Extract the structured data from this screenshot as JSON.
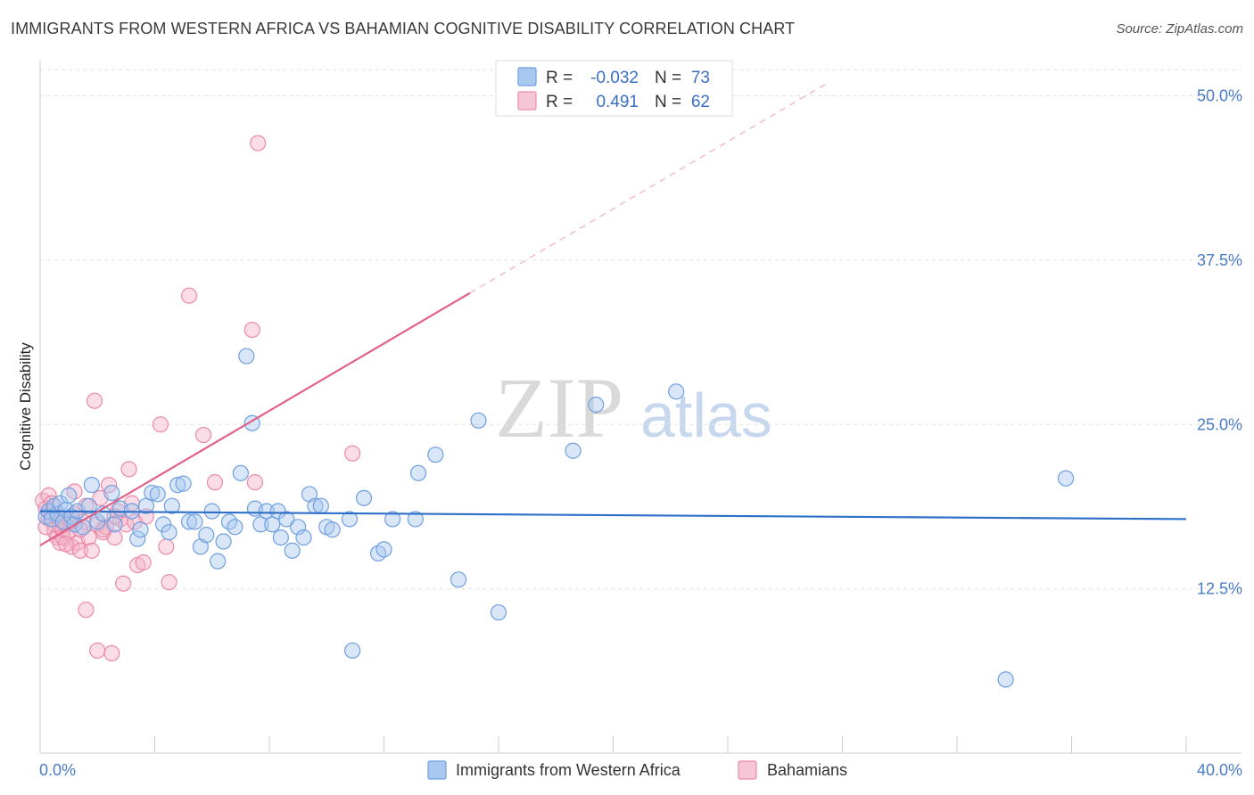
{
  "title": "IMMIGRANTS FROM WESTERN AFRICA VS BAHAMIAN COGNITIVE DISABILITY CORRELATION CHART",
  "source": "Source: ZipAtlas.com",
  "watermark": {
    "part1": "ZIP",
    "part2": "atlas"
  },
  "colors": {
    "blue_fill": "#a8c8f0",
    "blue_stroke": "#6f9fe0",
    "blue_line": "#2e6fc7",
    "pink_fill": "#f5b3c8",
    "pink_stroke": "#ec8aa9",
    "pink_line": "#e0608a",
    "grid": "#e2e2e2",
    "tick_label": "#4a7cc7"
  },
  "legend": {
    "r_label": "R =",
    "n_label": "N =",
    "series": [
      {
        "r": "-0.032",
        "n": "73"
      },
      {
        "r": "0.491",
        "n": "62"
      }
    ]
  },
  "chart_data": {
    "type": "scatter",
    "title": "IMMIGRANTS FROM WESTERN AFRICA VS BAHAMIAN COGNITIVE DISABILITY CORRELATION CHART",
    "xlabel": "",
    "ylabel": "Cognitive Disability",
    "xlim": [
      0,
      40
    ],
    "ylim": [
      0,
      52
    ],
    "x_tick_labels": [
      "0.0%",
      "40.0%"
    ],
    "y_ticks": [
      12.5,
      25.0,
      37.5,
      50.0
    ],
    "y_tick_labels": [
      "12.5%",
      "25.0%",
      "37.5%",
      "50.0%"
    ],
    "grid": true,
    "legend_position": "top-center",
    "series": [
      {
        "name": "Immigrants from Western Africa",
        "color": "blue",
        "trend": {
          "x0": 0,
          "y0": 18.4,
          "x1": 40,
          "y1": 17.8
        },
        "points": [
          [
            0.2,
            18.0
          ],
          [
            0.3,
            18.4
          ],
          [
            0.4,
            17.8
          ],
          [
            0.5,
            18.8
          ],
          [
            0.6,
            18.2
          ],
          [
            0.7,
            19.0
          ],
          [
            0.8,
            17.6
          ],
          [
            0.9,
            18.5
          ],
          [
            1.0,
            19.6
          ],
          [
            1.1,
            18.0
          ],
          [
            1.2,
            17.4
          ],
          [
            1.3,
            18.4
          ],
          [
            1.5,
            17.2
          ],
          [
            1.7,
            18.8
          ],
          [
            1.8,
            20.4
          ],
          [
            2.0,
            17.6
          ],
          [
            2.2,
            18.2
          ],
          [
            2.5,
            19.8
          ],
          [
            2.6,
            17.4
          ],
          [
            2.8,
            18.6
          ],
          [
            3.2,
            18.4
          ],
          [
            3.4,
            16.3
          ],
          [
            3.5,
            17.0
          ],
          [
            3.7,
            18.8
          ],
          [
            3.9,
            19.8
          ],
          [
            4.1,
            19.7
          ],
          [
            4.3,
            17.4
          ],
          [
            4.5,
            16.8
          ],
          [
            4.6,
            18.8
          ],
          [
            4.8,
            20.4
          ],
          [
            5.0,
            20.5
          ],
          [
            5.2,
            17.6
          ],
          [
            5.4,
            17.6
          ],
          [
            5.6,
            15.7
          ],
          [
            5.8,
            16.6
          ],
          [
            6.0,
            18.4
          ],
          [
            6.2,
            14.6
          ],
          [
            6.4,
            16.1
          ],
          [
            6.6,
            17.6
          ],
          [
            6.8,
            17.2
          ],
          [
            7.0,
            21.3
          ],
          [
            7.2,
            30.2
          ],
          [
            7.4,
            25.1
          ],
          [
            7.5,
            18.6
          ],
          [
            7.7,
            17.4
          ],
          [
            7.9,
            18.4
          ],
          [
            8.1,
            17.4
          ],
          [
            8.3,
            18.4
          ],
          [
            8.4,
            16.4
          ],
          [
            8.6,
            17.8
          ],
          [
            8.8,
            15.4
          ],
          [
            9.0,
            17.2
          ],
          [
            9.2,
            16.4
          ],
          [
            9.4,
            19.7
          ],
          [
            9.6,
            18.8
          ],
          [
            9.8,
            18.8
          ],
          [
            10.0,
            17.2
          ],
          [
            10.2,
            17.0
          ],
          [
            10.8,
            17.8
          ],
          [
            10.9,
            7.8
          ],
          [
            11.3,
            19.4
          ],
          [
            11.8,
            15.2
          ],
          [
            12.0,
            15.5
          ],
          [
            12.3,
            17.8
          ],
          [
            13.1,
            17.8
          ],
          [
            13.2,
            21.3
          ],
          [
            13.8,
            22.7
          ],
          [
            14.6,
            13.2
          ],
          [
            15.3,
            25.3
          ],
          [
            16.0,
            10.7
          ],
          [
            18.6,
            23.0
          ],
          [
            19.4,
            26.5
          ],
          [
            22.2,
            27.5
          ],
          [
            33.7,
            5.6
          ],
          [
            35.8,
            20.9
          ]
        ]
      },
      {
        "name": "Bahamians",
        "color": "pink",
        "trend": {
          "x0": 0,
          "y0": 15.8,
          "x1": 15.0,
          "y1": 35.0,
          "dash_to_x": 27.5,
          "dash_to_y": 51.0
        },
        "points": [
          [
            0.1,
            19.2
          ],
          [
            0.2,
            18.6
          ],
          [
            0.3,
            17.8
          ],
          [
            0.3,
            19.6
          ],
          [
            0.4,
            18.2
          ],
          [
            0.5,
            17.4
          ],
          [
            0.5,
            16.9
          ],
          [
            0.6,
            18.0
          ],
          [
            0.6,
            16.4
          ],
          [
            0.7,
            17.2
          ],
          [
            0.7,
            16.0
          ],
          [
            0.8,
            17.0
          ],
          [
            0.8,
            16.4
          ],
          [
            0.9,
            17.4
          ],
          [
            1.0,
            17.8
          ],
          [
            1.0,
            16.8
          ],
          [
            1.1,
            17.6
          ],
          [
            1.1,
            15.7
          ],
          [
            1.2,
            19.9
          ],
          [
            1.2,
            18.2
          ],
          [
            1.3,
            16.0
          ],
          [
            1.4,
            15.4
          ],
          [
            1.5,
            17.6
          ],
          [
            1.6,
            18.8
          ],
          [
            1.6,
            10.9
          ],
          [
            1.7,
            16.4
          ],
          [
            1.8,
            15.4
          ],
          [
            1.9,
            26.8
          ],
          [
            2.0,
            17.4
          ],
          [
            2.0,
            7.8
          ],
          [
            2.1,
            19.4
          ],
          [
            2.2,
            16.8
          ],
          [
            2.3,
            17.2
          ],
          [
            2.4,
            20.4
          ],
          [
            2.5,
            7.6
          ],
          [
            2.6,
            16.4
          ],
          [
            2.7,
            18.4
          ],
          [
            2.8,
            17.8
          ],
          [
            2.9,
            12.9
          ],
          [
            3.0,
            17.4
          ],
          [
            3.1,
            21.6
          ],
          [
            3.2,
            19.0
          ],
          [
            3.4,
            14.3
          ],
          [
            3.6,
            14.5
          ],
          [
            3.7,
            18.0
          ],
          [
            4.2,
            25.0
          ],
          [
            4.4,
            15.7
          ],
          [
            4.5,
            13.0
          ],
          [
            5.2,
            34.8
          ],
          [
            5.7,
            24.2
          ],
          [
            6.1,
            20.6
          ],
          [
            7.4,
            32.2
          ],
          [
            7.5,
            20.6
          ],
          [
            7.6,
            46.4
          ],
          [
            10.9,
            22.8
          ],
          [
            0.2,
            17.2
          ],
          [
            0.4,
            19.0
          ],
          [
            0.9,
            15.9
          ],
          [
            1.4,
            17.0
          ],
          [
            2.2,
            17.0
          ],
          [
            3.3,
            17.6
          ],
          [
            2.6,
            18.0
          ]
        ]
      }
    ]
  },
  "bottom_legend": [
    {
      "label": "Immigrants from Western Africa"
    },
    {
      "label": "Bahamians"
    }
  ]
}
